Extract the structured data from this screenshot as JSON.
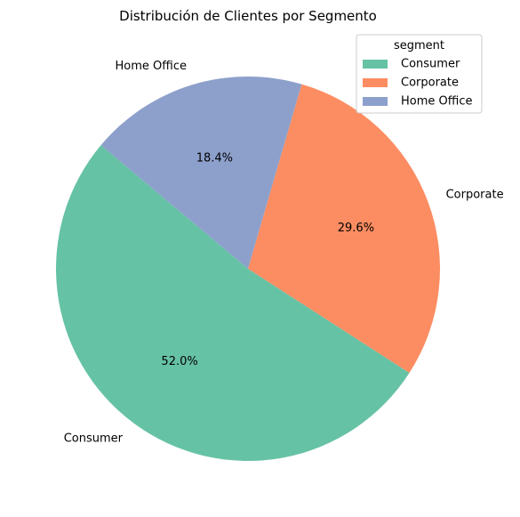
{
  "chart_data": {
    "type": "pie",
    "title": "Distribución de Clientes por Segmento",
    "categories": [
      "Consumer",
      "Corporate",
      "Home Office"
    ],
    "values": [
      52.0,
      29.6,
      18.4
    ],
    "percent_labels": [
      "52.0%",
      "29.6%",
      "18.4%"
    ],
    "colors": [
      "#66c2a5",
      "#fc8d62",
      "#8da0cb"
    ],
    "legend": {
      "title": "segment",
      "placement": "top-right",
      "entries": [
        "Consumer",
        "Corporate",
        "Home Office"
      ]
    },
    "start_angle_deg": 140,
    "direction": "counterclockwise"
  }
}
